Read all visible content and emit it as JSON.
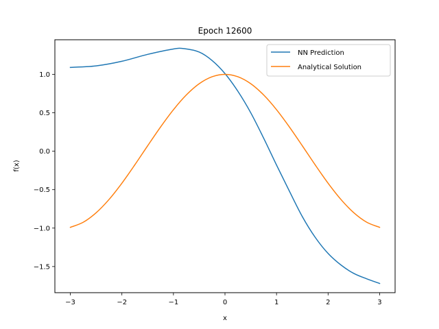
{
  "chart_data": {
    "type": "line",
    "title": "Epoch 12600",
    "xlabel": "x",
    "ylabel": "f(x)",
    "xlim": [
      -3.3,
      3.3
    ],
    "ylim": [
      -1.84,
      1.45
    ],
    "xticks": [
      -3,
      -2,
      -1,
      0,
      1,
      2,
      3
    ],
    "xtick_labels": [
      "−3",
      "−2",
      "−1",
      "0",
      "1",
      "2",
      "3"
    ],
    "yticks": [
      -1.5,
      -1.0,
      -0.5,
      0.0,
      0.5,
      1.0
    ],
    "ytick_labels": [
      "−1.5",
      "−1.0",
      "−0.5",
      "0.0",
      "0.5",
      "1.0"
    ],
    "grid": false,
    "legend_position": "top-right",
    "series": [
      {
        "name": "NN Prediction",
        "color": "#1f77b4",
        "x": [
          -3.0,
          -2.5,
          -2.0,
          -1.5,
          -1.0,
          -0.8,
          -0.5,
          -0.25,
          0.0,
          0.25,
          0.5,
          0.75,
          1.0,
          1.25,
          1.5,
          1.75,
          2.0,
          2.25,
          2.5,
          2.75,
          3.0
        ],
        "y": [
          1.09,
          1.11,
          1.17,
          1.26,
          1.33,
          1.335,
          1.29,
          1.18,
          1.01,
          0.78,
          0.5,
          0.17,
          -0.18,
          -0.52,
          -0.85,
          -1.12,
          -1.33,
          -1.48,
          -1.59,
          -1.66,
          -1.72
        ]
      },
      {
        "name": "Analytical Solution",
        "color": "#ff7f0e",
        "x": [
          -3.0,
          -2.75,
          -2.5,
          -2.25,
          -2.0,
          -1.75,
          -1.5,
          -1.25,
          -1.0,
          -0.75,
          -0.5,
          -0.25,
          0.0,
          0.25,
          0.5,
          0.75,
          1.0,
          1.25,
          1.5,
          1.75,
          2.0,
          2.25,
          2.5,
          2.75,
          3.0
        ],
        "y": [
          -0.99,
          -0.924,
          -0.801,
          -0.628,
          -0.416,
          -0.178,
          0.071,
          0.315,
          0.54,
          0.732,
          0.878,
          0.969,
          1.0,
          0.969,
          0.878,
          0.732,
          0.54,
          0.315,
          0.071,
          -0.178,
          -0.416,
          -0.628,
          -0.801,
          -0.924,
          -0.99
        ]
      }
    ]
  }
}
